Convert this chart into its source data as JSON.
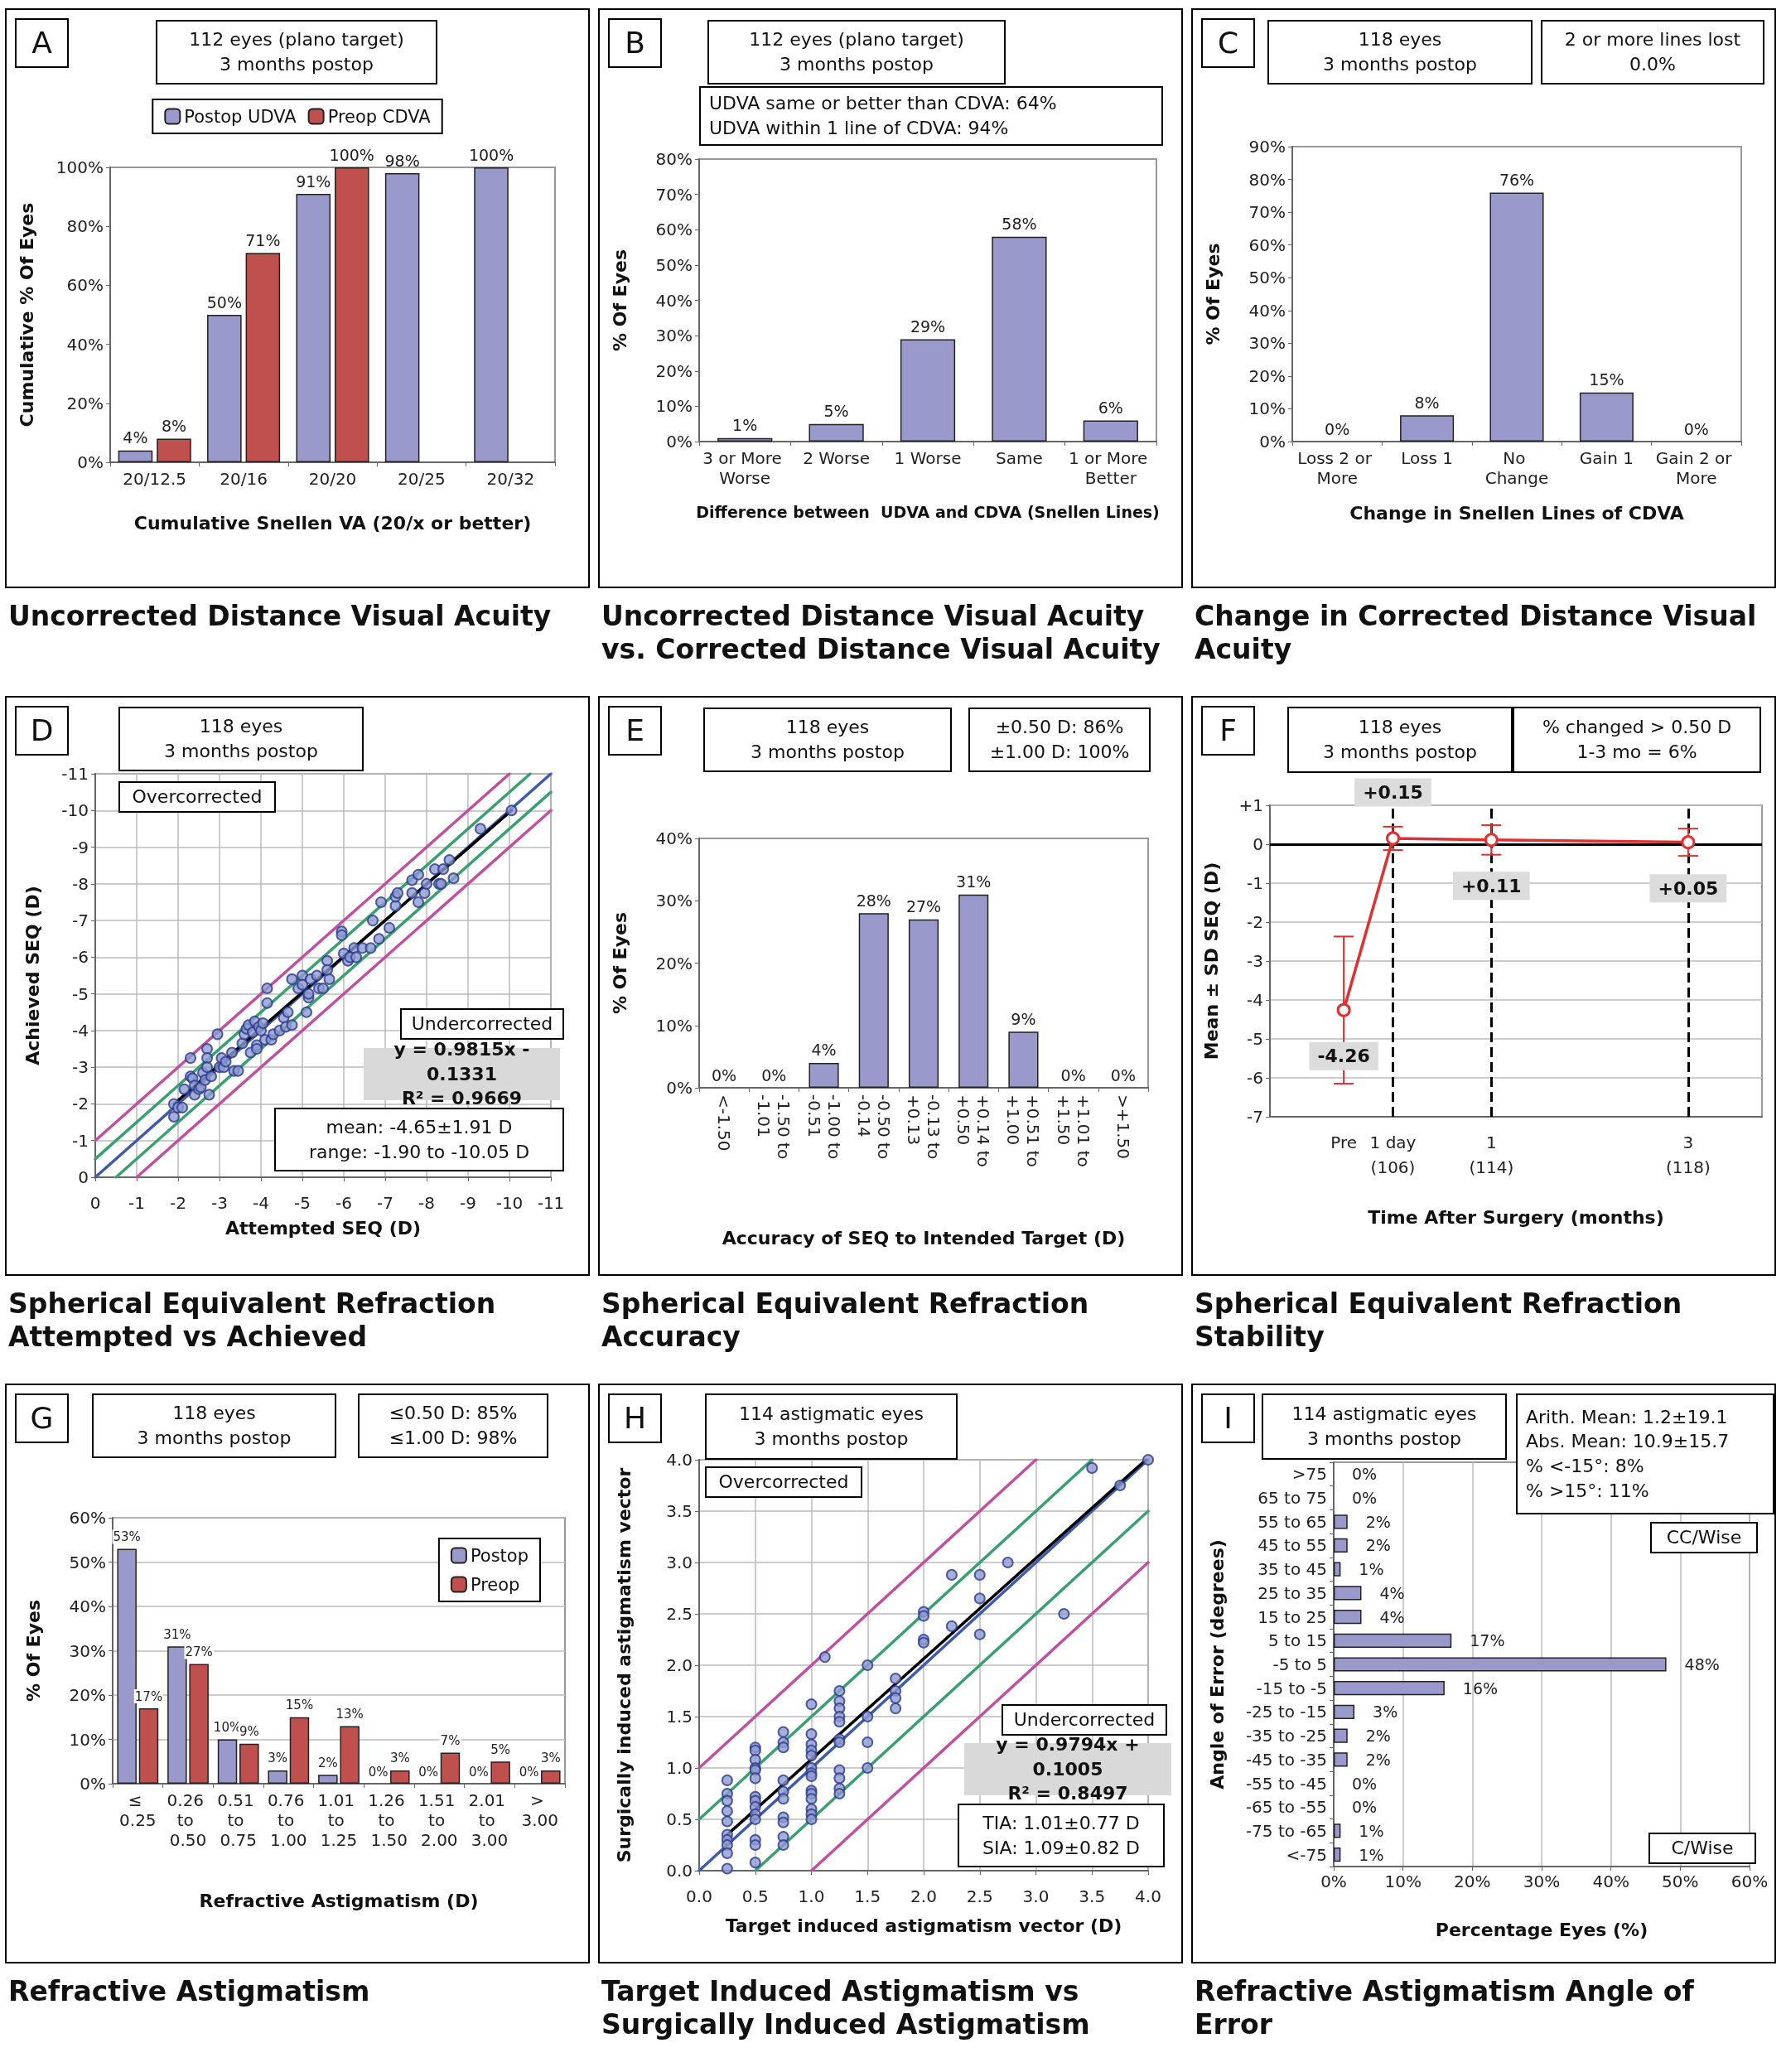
{
  "chart_data": [
    {
      "type": "bar",
      "title": "Uncorrected Distance Visual Acuity",
      "xlabel": "Cumulative Snellen VA (20/x or better)",
      "ylabel": "Cumulative % Of Eyes",
      "annotations": [
        "A",
        "112 eyes (plano target)\n3 months postop"
      ],
      "categories": [
        "20/12.5",
        "20/16",
        "20/20",
        "20/25",
        "20/32"
      ],
      "series": [
        {
          "name": "Postop UDVA",
          "color": "#9999cc",
          "values": [
            4,
            50,
            91,
            98,
            100
          ],
          "value_labels": [
            "4%",
            "50%",
            "91%",
            "98%",
            "100%"
          ]
        },
        {
          "name": "Preop CDVA",
          "color": "#c0504d",
          "values": [
            8,
            71,
            100,
            null,
            null
          ],
          "value_labels": [
            "8%",
            "71%",
            "100%",
            null,
            null
          ]
        }
      ],
      "ylim": [
        0,
        100
      ],
      "yticks": [
        {
          "value": 0,
          "label": "0%"
        },
        {
          "value": 20,
          "label": "20%"
        },
        {
          "value": 40,
          "label": "40%"
        },
        {
          "value": 60,
          "label": "60%"
        },
        {
          "value": 80,
          "label": "80%"
        },
        {
          "value": 100,
          "label": "100%"
        }
      ],
      "legend": "top"
    },
    {
      "type": "bar",
      "title": "Uncorrected Distance Visual Acuity vs. Corrected Distance Visual Acuity",
      "xlabel": "Difference between  UDVA and CDVA (Snellen Lines)",
      "ylabel": "% Of Eyes",
      "annotations": [
        "B",
        "112 eyes (plano target)\n3 months postop",
        "UDVA same or better than CDVA: 64%\nUDVA within 1 line of CDVA: 94%"
      ],
      "categories": [
        "3 or More Worse",
        "2 Worse",
        "1 Worse",
        "Same",
        "1 or More Better"
      ],
      "color": "#9999cc",
      "values": [
        1,
        5,
        29,
        58,
        6
      ],
      "value_labels": [
        "1%",
        "5%",
        "29%",
        "58%",
        "6%"
      ],
      "ylim": [
        0,
        80
      ],
      "yticks": [
        {
          "value": 0,
          "label": "0%"
        },
        {
          "value": 10,
          "label": "10%"
        },
        {
          "value": 20,
          "label": "20%"
        },
        {
          "value": 30,
          "label": "30%"
        },
        {
          "value": 40,
          "label": "40%"
        },
        {
          "value": 50,
          "label": "50%"
        },
        {
          "value": 60,
          "label": "60%"
        },
        {
          "value": 70,
          "label": "70%"
        },
        {
          "value": 80,
          "label": "80%"
        }
      ]
    },
    {
      "type": "bar",
      "title": "Change in Corrected Distance Visual Acuity",
      "xlabel": "Change in Snellen Lines of CDVA",
      "ylabel": "% Of Eyes",
      "annotations": [
        "C",
        "118 eyes\n3 months postop",
        "2 or more lines lost\n0.0%"
      ],
      "categories": [
        "Loss 2 or More",
        "Loss 1",
        "No Change",
        "Gain 1",
        "Gain 2 or More"
      ],
      "color": "#9999cc",
      "values": [
        0,
        8,
        76,
        15,
        0
      ],
      "value_labels": [
        "0%",
        "8%",
        "76%",
        "15%",
        "0%"
      ],
      "ylim": [
        0,
        90
      ],
      "yticks": [
        {
          "value": 0,
          "label": "0%"
        },
        {
          "value": 10,
          "label": "10%"
        },
        {
          "value": 20,
          "label": "20%"
        },
        {
          "value": 30,
          "label": "30%"
        },
        {
          "value": 40,
          "label": "40%"
        },
        {
          "value": 50,
          "label": "50%"
        },
        {
          "value": 60,
          "label": "60%"
        },
        {
          "value": 70,
          "label": "70%"
        },
        {
          "value": 80,
          "label": "80%"
        },
        {
          "value": 90,
          "label": "90%"
        }
      ]
    },
    {
      "type": "scatter",
      "title": "Spherical Equivalent Refraction Attempted vs Achieved",
      "xlabel": "Attempted SEQ (D)",
      "ylabel": "Achieved SEQ (D)",
      "annotations": [
        "D",
        "118 eyes\n3 months postop",
        "Overcorrected",
        "Undercorrected",
        "y = 0.9815x - 0.1331\nR² = 0.9669",
        "mean: -4.65±1.91 D\nrange: -1.90 to -10.05 D"
      ],
      "marker": "circle",
      "grid": true,
      "xlim": [
        0,
        -11
      ],
      "xticks": [
        0,
        -1,
        -2,
        -3,
        -4,
        -5,
        -6,
        -7,
        -8,
        -9,
        -10,
        -11
      ],
      "ylim": [
        0,
        -11
      ],
      "yticks": [
        0,
        -1,
        -2,
        -3,
        -4,
        -5,
        -6,
        -7,
        -8,
        -9,
        -10,
        -11
      ],
      "series": [
        {
          "type": "scatter",
          "color": "#8e9bd0",
          "x": [
            -1.9,
            -1.9,
            -2.0,
            -2.1,
            -2.15,
            -2.3,
            -2.3,
            -2.35,
            -2.4,
            -2.4,
            -2.5,
            -2.55,
            -2.6,
            -2.65,
            -2.7,
            -2.7,
            -2.7,
            -2.75,
            -2.8,
            -2.95,
            -3.0,
            -3.05,
            -3.1,
            -3.15,
            -3.3,
            -3.35,
            -3.45,
            -3.55,
            -3.6,
            -3.65,
            -3.7,
            -3.75,
            -3.8,
            -3.85,
            -3.9,
            -3.9,
            -3.95,
            -4.0,
            -4.05,
            -4.1,
            -4.15,
            -4.15,
            -4.25,
            -4.3,
            -4.45,
            -4.55,
            -4.6,
            -4.65,
            -4.75,
            -4.75,
            -4.9,
            -5.0,
            -5.0,
            -5.1,
            -5.15,
            -5.15,
            -5.2,
            -5.35,
            -5.4,
            -5.5,
            -5.6,
            -5.6,
            -5.65,
            -5.95,
            -5.95,
            -6.0,
            -6.1,
            -6.15,
            -6.25,
            -6.3,
            -6.45,
            -6.65,
            -6.7,
            -6.85,
            -6.9,
            -7.1,
            -7.25,
            -7.25,
            -7.3,
            -7.65,
            -7.65,
            -7.8,
            -7.8,
            -7.95,
            -8.0,
            -8.2,
            -8.3,
            -8.35,
            -8.4,
            -8.55,
            -8.65,
            -9.3,
            -10.05
          ],
          "values": [
            -2.0,
            -1.65,
            -1.9,
            -1.9,
            -2.4,
            -3.25,
            -2.75,
            -2.7,
            -2.5,
            -2.25,
            -2.4,
            -2.45,
            -2.85,
            -2.65,
            -3.5,
            -3.25,
            -3.0,
            -2.25,
            -2.75,
            -3.9,
            -3.0,
            -3.25,
            -3.0,
            -3.15,
            -3.4,
            -2.9,
            -2.9,
            -3.65,
            -3.9,
            -4.05,
            -4.15,
            -3.4,
            -3.95,
            -4.25,
            -3.6,
            -3.5,
            -4.1,
            -4.0,
            -4.2,
            -3.75,
            -5.15,
            -4.75,
            -3.75,
            -3.9,
            -4.0,
            -4.35,
            -4.1,
            -4.5,
            -4.15,
            -5.4,
            -5.15,
            -5.5,
            -5.25,
            -4.5,
            -4.9,
            -5.0,
            -5.4,
            -5.5,
            -5.15,
            -5.15,
            -5.9,
            -5.65,
            -5.4,
            -6.7,
            -6.6,
            -6.1,
            -5.9,
            -6.0,
            -6.25,
            -6.0,
            -6.25,
            -6.25,
            -7.0,
            -6.5,
            -7.5,
            -6.8,
            -7.4,
            -7.65,
            -7.75,
            -8.1,
            -7.75,
            -8.25,
            -7.5,
            -7.75,
            -8.0,
            -8.4,
            -8.0,
            -8.0,
            -8.4,
            -8.65,
            -8.15,
            -9.5,
            -10.0
          ]
        },
        {
          "type": "line",
          "marker": "none",
          "color": "#c050a0",
          "x": [
            0,
            -10
          ],
          "values": [
            -1,
            -11
          ]
        },
        {
          "type": "line",
          "marker": "none",
          "color": "#c050a0",
          "x": [
            -1,
            -11
          ],
          "values": [
            0,
            -10
          ]
        },
        {
          "type": "line",
          "marker": "none",
          "color": "#3aa070",
          "x": [
            0,
            -10.5
          ],
          "values": [
            -0.5,
            -11
          ]
        },
        {
          "type": "line",
          "marker": "none",
          "color": "#3aa070",
          "x": [
            -0.5,
            -11
          ],
          "values": [
            0,
            -10.5
          ]
        },
        {
          "type": "line",
          "marker": "none",
          "color": "#3f5bab",
          "x": [
            0,
            -11
          ],
          "values": [
            0,
            -11
          ]
        },
        {
          "type": "line",
          "marker": "none",
          "color": "#000000",
          "x": [
            -1.9,
            -10.05
          ],
          "values": [
            -2.0,
            -10.0
          ]
        }
      ]
    },
    {
      "type": "bar",
      "title": "Spherical Equivalent Refraction Accuracy",
      "xlabel": "Accuracy of SEQ to Intended Target (D)",
      "ylabel": "% Of Eyes",
      "annotations": [
        "E",
        "118 eyes\n3 months postop",
        "±0.50 D: 86%\n±1.00 D: 100%"
      ],
      "categories": [
        "<-1.50",
        "-1.50 to -1.01",
        "-1.00 to -0.51",
        "-0.50 to -0.14",
        "-0.13 to +0.13",
        "+0.14 to +0.50",
        "+0.51 to +1.00",
        "+1.01 to +1.50",
        ">+1.50"
      ],
      "color": "#9999cc",
      "values": [
        0,
        0,
        4,
        28,
        27,
        31,
        9,
        0,
        0
      ],
      "value_labels": [
        "0%",
        "0%",
        "4%",
        "28%",
        "27%",
        "31%",
        "9%",
        "0%",
        "0%"
      ],
      "ylim": [
        0,
        40
      ],
      "yticks": [
        {
          "value": 0,
          "label": "0%"
        },
        {
          "value": 10,
          "label": "10%"
        },
        {
          "value": 20,
          "label": "20%"
        },
        {
          "value": 30,
          "label": "30%"
        },
        {
          "value": 40,
          "label": "40%"
        }
      ]
    },
    {
      "type": "line",
      "title": "Spherical Equivalent Refraction Stability",
      "xlabel": "Time After Surgery (months)",
      "ylabel": "Mean ± SD SEQ (D)",
      "annotations": [
        "F",
        "118 eyes\n3 months postop",
        "% changed > 0.50 D\n1-3 mo = 6%"
      ],
      "marker": "circle",
      "grid": "y",
      "color": "#e03030",
      "categories": [
        null,
        "Pre",
        "1 day\n(106)",
        null,
        "1\n(114)",
        null,
        null,
        null,
        "3\n(118)",
        null
      ],
      "values": [
        null,
        -4.26,
        0.15,
        null,
        0.11,
        null,
        null,
        null,
        0.05,
        null
      ],
      "errors": [
        null,
        1.89,
        0.3,
        null,
        0.38,
        null,
        null,
        null,
        0.35,
        null
      ],
      "value_labels": [
        null,
        "-4.26",
        "+0.15",
        null,
        "+0.11",
        null,
        null,
        null,
        "+0.05",
        null
      ],
      "ylim": [
        -7,
        1
      ],
      "yticks": [
        -7,
        -6,
        -5,
        -4,
        -3,
        -2,
        -1,
        0,
        {
          "value": 1,
          "label": "+1"
        }
      ],
      "ref_lines": [
        {
          "axis": "y",
          "value": 0,
          "color": "#000000",
          "line_style": "solid"
        },
        {
          "axis": "x",
          "value": "1 day\n(106)",
          "color": "#000000",
          "line_style": "dashed"
        },
        {
          "axis": "x",
          "value": "1\n(114)",
          "color": "#000000",
          "line_style": "dashed"
        },
        {
          "axis": "x",
          "value": "3\n(118)",
          "color": "#000000",
          "line_style": "dashed"
        }
      ]
    },
    {
      "type": "bar",
      "title": "Refractive Astigmatism",
      "xlabel": "Refractive Astigmatism (D)",
      "ylabel": "% Of Eyes",
      "annotations": [
        "G",
        "118 eyes\n3 months postop",
        "≤0.50 D: 85%\n≤1.00 D: 98%"
      ],
      "categories": [
        "≤ 0.25",
        "0.26 to 0.50",
        "0.51 to 0.75",
        "0.76 to 1.00",
        "1.01 to 1.25",
        "1.26 to 1.50",
        "1.51 to 2.00",
        "2.01 to 3.00",
        "> 3.00"
      ],
      "grid": "y",
      "legend": "top right",
      "series": [
        {
          "name": "Postop",
          "color": "#9999cc",
          "values": [
            53,
            31,
            10,
            3,
            2,
            0,
            0,
            0,
            0
          ],
          "value_labels": [
            "53%",
            "31%",
            "10%",
            "3%",
            "2%",
            "0%",
            "0%",
            "0%",
            "0%"
          ]
        },
        {
          "name": "Preop",
          "color": "#c0504d",
          "values": [
            17,
            27,
            9,
            15,
            13,
            3,
            7,
            5,
            3
          ],
          "value_labels": [
            "17%",
            "27%",
            "9%",
            "15%",
            "13%",
            "3%",
            "7%",
            "5%",
            "3%"
          ]
        }
      ],
      "ylim": [
        0,
        60
      ],
      "yticks": [
        {
          "value": 0,
          "label": "0%"
        },
        {
          "value": 10,
          "label": "10%"
        },
        {
          "value": 20,
          "label": "20%"
        },
        {
          "value": 30,
          "label": "30%"
        },
        {
          "value": 40,
          "label": "40%"
        },
        {
          "value": 50,
          "label": "50%"
        },
        {
          "value": 60,
          "label": "60%"
        }
      ]
    },
    {
      "type": "scatter",
      "title": "Target Induced Astigmatism vs Surgically Induced Astigmatism",
      "xlabel": "Target induced astigmatism vector (D)",
      "ylabel": "Surgically induced astigmatism vector",
      "annotations": [
        "H",
        "114 astigmatic eyes\n3 months postop",
        "Overcorrected",
        "Undercorrected",
        "y = 0.9794x + 0.1005\nR² = 0.8497",
        "TIA: 1.01±0.77 D\nSIA: 1.09±0.82 D"
      ],
      "marker": "circle",
      "grid": true,
      "xlim": [
        0,
        4
      ],
      "xticks": [
        {
          "value": 0,
          "label": "0.0"
        },
        0.5,
        {
          "value": 1,
          "label": "1.0"
        },
        1.5,
        {
          "value": 2,
          "label": "2.0"
        },
        2.5,
        {
          "value": 3,
          "label": "3.0"
        },
        3.5,
        {
          "value": 4,
          "label": "4.0"
        }
      ],
      "ylim": [
        0,
        4
      ],
      "yticks": [
        {
          "value": 0,
          "label": "0.0"
        },
        0.5,
        {
          "value": 1,
          "label": "1.0"
        },
        1.5,
        {
          "value": 2,
          "label": "2.0"
        },
        2.5,
        {
          "value": 3,
          "label": "3.0"
        },
        3.5,
        {
          "value": 4,
          "label": "4.0"
        }
      ],
      "series": [
        {
          "type": "line",
          "marker": "none",
          "color": "#c050a0",
          "x": [
            0,
            3
          ],
          "values": [
            1,
            4
          ]
        },
        {
          "type": "line",
          "marker": "none",
          "color": "#c050a0",
          "x": [
            1,
            4
          ],
          "values": [
            0,
            3
          ]
        },
        {
          "type": "line",
          "marker": "none",
          "color": "#3aa070",
          "x": [
            0,
            3.5
          ],
          "values": [
            0.5,
            4
          ]
        },
        {
          "type": "line",
          "marker": "none",
          "color": "#3aa070",
          "x": [
            0.5,
            4
          ],
          "values": [
            0,
            3.5
          ]
        },
        {
          "type": "line",
          "marker": "none",
          "color": "#3f5bab",
          "x": [
            0,
            4
          ],
          "values": [
            0,
            4
          ]
        },
        {
          "type": "line",
          "marker": "none",
          "color": "#000000",
          "x": [
            0.25,
            3.98
          ],
          "values": [
            0.35,
            4.0
          ]
        },
        {
          "type": "scatter",
          "color": "#8e9bd0",
          "x": [
            0.25,
            0.25,
            0.25,
            0.25,
            0.25,
            0.25,
            0.25,
            0.25,
            0.25,
            0.25,
            0.5,
            0.5,
            0.5,
            0.5,
            0.5,
            0.5,
            0.5,
            0.5,
            0.5,
            0.5,
            0.5,
            0.5,
            0.5,
            0.5,
            0.75,
            0.75,
            0.75,
            0.75,
            0.75,
            0.75,
            0.75,
            0.75,
            0.75,
            0.75,
            1.0,
            1.0,
            1.0,
            1.0,
            1.0,
            1.0,
            1.0,
            1.0,
            1.0,
            1.0,
            1.0,
            1.0,
            1.0,
            1.0,
            1.12,
            1.25,
            1.25,
            1.25,
            1.25,
            1.25,
            1.25,
            1.25,
            1.25,
            1.25,
            1.25,
            1.25,
            1.5,
            1.5,
            1.5,
            1.5,
            1.75,
            1.75,
            1.75,
            1.75,
            2.0,
            2.0,
            2.0,
            2.0,
            2.25,
            2.25,
            2.5,
            2.5,
            2.5,
            2.75,
            3.25,
            3.5,
            3.75,
            4.0
          ],
          "values": [
            0.88,
            0.75,
            0.68,
            0.58,
            0.48,
            0.35,
            0.3,
            0.25,
            0.17,
            0.02,
            1.2,
            1.17,
            1.08,
            1.0,
            0.98,
            0.9,
            0.72,
            0.68,
            0.62,
            0.55,
            0.5,
            0.3,
            0.25,
            0.08,
            1.35,
            1.25,
            1.2,
            0.88,
            0.77,
            0.7,
            0.52,
            0.47,
            0.33,
            0.25,
            1.62,
            1.33,
            1.23,
            1.17,
            1.12,
            1.0,
            0.95,
            0.92,
            0.78,
            0.75,
            0.7,
            0.6,
            0.55,
            0.5,
            2.08,
            1.75,
            1.65,
            1.58,
            1.5,
            1.45,
            1.28,
            1.25,
            0.98,
            0.9,
            0.8,
            0.75,
            2.0,
            1.5,
            1.25,
            1.0,
            1.87,
            1.75,
            1.68,
            1.58,
            2.52,
            2.48,
            2.25,
            2.22,
            2.88,
            2.38,
            2.88,
            2.65,
            2.3,
            3.0,
            2.5,
            3.92,
            3.75,
            4.0
          ]
        }
      ]
    },
    {
      "type": "bar",
      "orientation": "horizontal",
      "title": "Refractive Astigmatism Angle of Error",
      "xlabel": "Percentage Eyes (%)",
      "ylabel": "Angle of Error (degrees)",
      "annotations": [
        "I",
        "114 astigmatic eyes\n3 months postop",
        "Arith. Mean: 1.2±19.1\nAbs. Mean: 10.9±15.7\n% <-15°: 8%\n% >15°: 11%",
        "CC/Wise",
        "C/Wise"
      ],
      "grid": "x",
      "categories": [
        ">75",
        "65 to 75",
        "55 to 65",
        "45 to 55",
        "35 to 45",
        "25 to 35",
        "15 to 25",
        "5 to 15",
        "-5 to 5",
        "-15 to -5",
        "-25 to -15",
        "-35 to -25",
        "-45 to -35",
        "-55 to -45",
        "-65 to -55",
        "-75 to -65",
        "<-75"
      ],
      "color": "#9999cc",
      "values": [
        0,
        0,
        2,
        2,
        1,
        4,
        4,
        17,
        48,
        16,
        3,
        2,
        2,
        0,
        0,
        1,
        1
      ],
      "value_labels": [
        "0%",
        "0%",
        "2%",
        "2%",
        "1%",
        "4%",
        "4%",
        "17%",
        "48%",
        "16%",
        "3%",
        "2%",
        "2%",
        "0%",
        "0%",
        "1%",
        "1%"
      ],
      "xlim": [
        0,
        60
      ],
      "xticks": [
        {
          "value": 0,
          "label": "0%"
        },
        {
          "value": 10,
          "label": "10%"
        },
        {
          "value": 20,
          "label": "20%"
        },
        {
          "value": 30,
          "label": "30%"
        },
        {
          "value": 40,
          "label": "40%"
        },
        {
          "value": 50,
          "label": "50%"
        },
        {
          "value": 60,
          "label": "60%"
        }
      ]
    }
  ]
}
